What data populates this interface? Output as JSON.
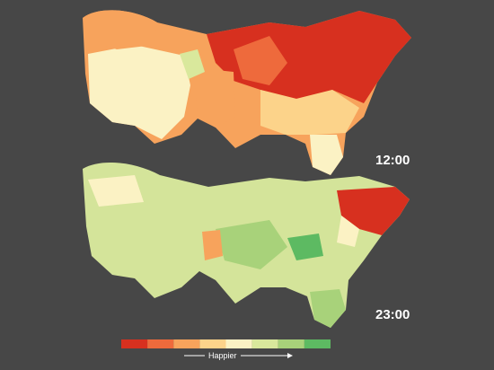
{
  "maps": [
    {
      "label": "12:00"
    },
    {
      "label": "23:00"
    }
  ],
  "legend": {
    "label": "Happier",
    "colors": [
      "#d7301f",
      "#ee6a3c",
      "#f7a35c",
      "#fcd38a",
      "#fbf2c4",
      "#d9e89c",
      "#a8d27a",
      "#5dba62"
    ]
  }
}
